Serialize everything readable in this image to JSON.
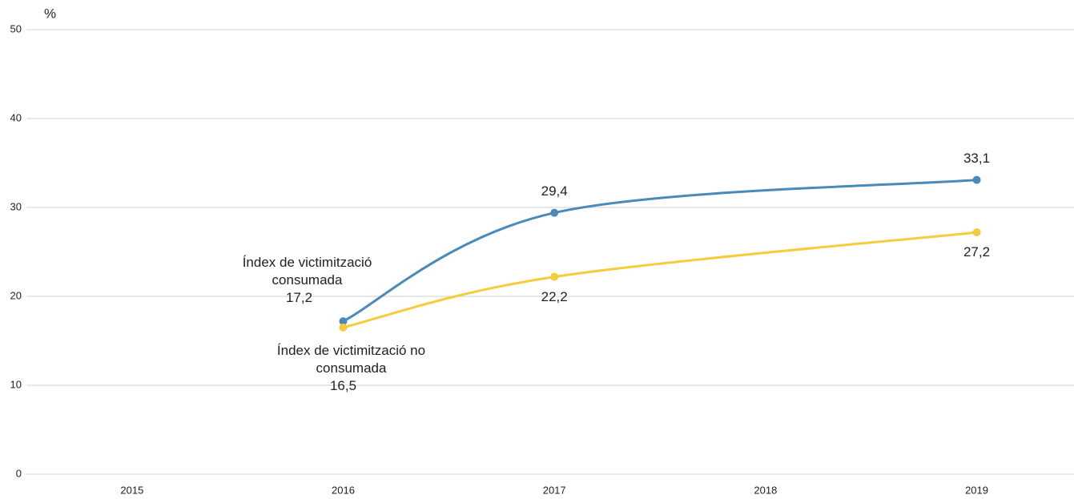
{
  "chart_data": {
    "type": "line",
    "y_axis_label": "%",
    "x": [
      2016,
      2017,
      2019
    ],
    "xlim": [
      2014.5,
      2019.4
    ],
    "xticks": [
      2015,
      2016,
      2017,
      2018,
      2019
    ],
    "ylim": [
      0,
      50
    ],
    "yticks": [
      0,
      10,
      20,
      30,
      40,
      50
    ],
    "grid": true,
    "series": [
      {
        "name": "Índex de victimització consumada",
        "color": "#4a8ab8",
        "values": [
          17.2,
          29.4,
          33.1
        ],
        "value_labels": [
          "17,2",
          "29,4",
          "33,1"
        ]
      },
      {
        "name": "Índex de victimització no consumada",
        "color": "#f5cd3c",
        "values": [
          16.5,
          22.2,
          27.2
        ],
        "value_labels": [
          "16,5",
          "22,2",
          "27,2"
        ]
      }
    ]
  }
}
